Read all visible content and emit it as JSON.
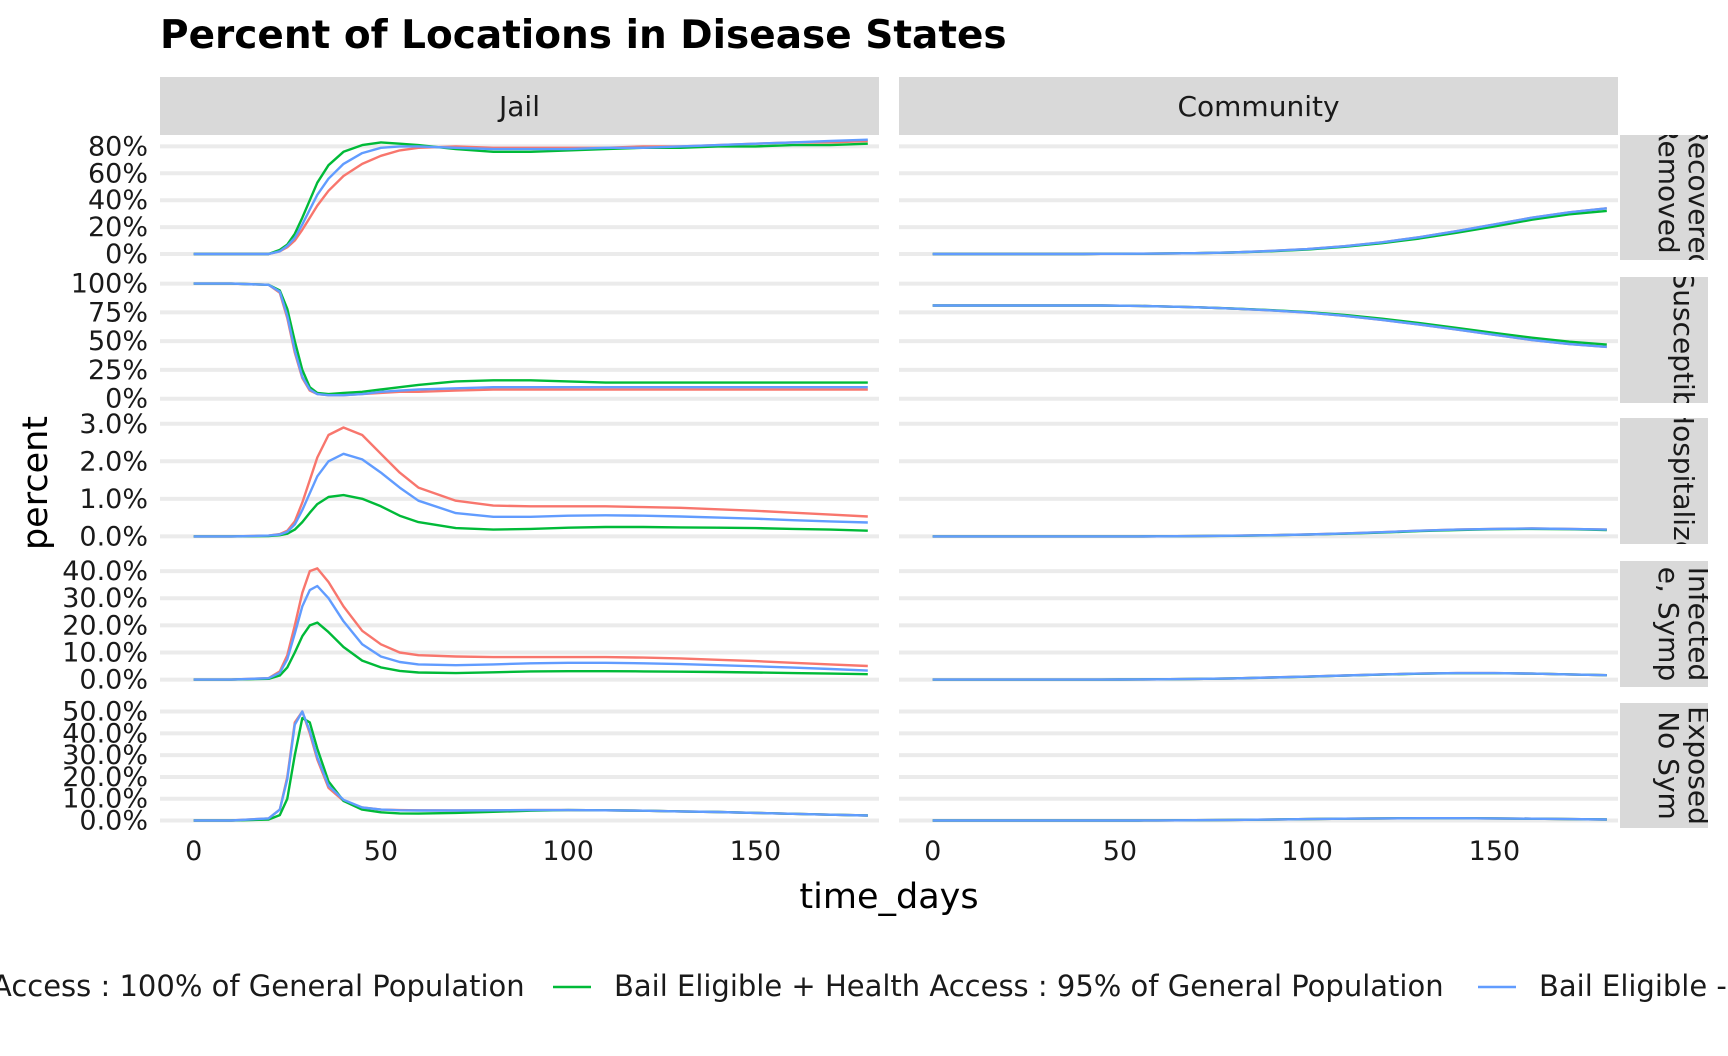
{
  "chart_data": {
    "type": "line",
    "title": "Percent of Locations in Disease States",
    "xlabel": "time_days",
    "ylabel": "percent",
    "xlim": [
      -9,
      183
    ],
    "x_ticks": [
      0,
      50,
      100,
      150
    ],
    "x_tick_labels": [
      "0",
      "50",
      "100",
      "150"
    ],
    "facet_columns": [
      "Jail",
      "Community"
    ],
    "facet_rows": [
      {
        "strip_lines": [
          "Recovered",
          "Removed -"
        ],
        "ylim": [
          -3,
          87
        ],
        "ticks": [
          0,
          20,
          40,
          60,
          80
        ],
        "tick_labels": [
          "0%",
          "20%",
          "40%",
          "60%",
          "80%"
        ]
      },
      {
        "strip_lines": [
          "Susceptib"
        ],
        "ylim": [
          -2,
          104
        ],
        "ticks": [
          0,
          25,
          50,
          75,
          100
        ],
        "tick_labels": [
          "0%",
          "25%",
          "50%",
          "75%",
          "100%"
        ]
      },
      {
        "strip_lines": [
          "Hospitalize"
        ],
        "ylim": [
          -0.15,
          3.1
        ],
        "ticks": [
          0,
          1,
          2,
          3
        ],
        "tick_labels": [
          "0.0%",
          "1.0%",
          "2.0%",
          "3.0%"
        ]
      },
      {
        "strip_lines": [
          "Infected",
          "e, Symp"
        ],
        "ylim": [
          -2,
          43
        ],
        "ticks": [
          0,
          10,
          20,
          30,
          40
        ],
        "tick_labels": [
          "0.0%",
          "10.0%",
          "20.0%",
          "30.0%",
          "40.0%"
        ]
      },
      {
        "strip_lines": [
          "Exposed",
          "No Sym"
        ],
        "ylim": [
          -2.5,
          53
        ],
        "ticks": [
          0,
          10,
          20,
          30,
          40,
          50
        ],
        "tick_labels": [
          "0.0%",
          "10.0%",
          "20.0%",
          "30.0%",
          "40.0%",
          "50.0%"
        ]
      }
    ],
    "series": [
      {
        "color": "#F8766D"
      },
      {
        "color": "#00BA38"
      },
      {
        "color": "#619CFF"
      }
    ],
    "x": [
      0,
      10,
      20,
      23,
      25,
      27,
      29,
      31,
      33,
      36,
      40,
      45,
      50,
      55,
      60,
      70,
      80,
      90,
      100,
      110,
      120,
      130,
      140,
      150,
      160,
      170,
      180
    ],
    "data": [
      [
        [
          [
            0,
            0,
            0,
            2,
            5,
            10,
            18,
            27,
            36,
            47,
            58,
            67,
            73,
            77,
            79,
            80,
            79,
            79,
            79,
            79,
            80,
            80,
            81,
            82,
            83,
            83,
            84
          ],
          [
            0,
            0,
            0,
            3,
            7,
            15,
            27,
            40,
            53,
            66,
            76,
            81,
            83,
            82,
            81,
            78,
            76,
            76,
            77,
            78,
            79,
            79,
            80,
            80,
            81,
            81,
            82
          ],
          [
            0,
            0,
            0,
            2,
            6,
            12,
            22,
            33,
            44,
            56,
            67,
            75,
            79,
            80,
            80,
            79,
            78,
            78,
            78,
            79,
            79,
            80,
            81,
            82,
            83,
            84,
            85
          ]
        ],
        [
          [
            0,
            0,
            0,
            0,
            0,
            0,
            0,
            0,
            0,
            0,
            0,
            0.1,
            0.1,
            0.2,
            0.3,
            0.6,
            1.2,
            2.2,
            3.6,
            5.8,
            8.7,
            12.5,
            17,
            22,
            27,
            31,
            34
          ],
          [
            0,
            0,
            0,
            0,
            0,
            0,
            0,
            0,
            0,
            0,
            0,
            0.1,
            0.1,
            0.2,
            0.3,
            0.6,
            1.1,
            2,
            3.3,
            5.3,
            8,
            11.5,
            15.8,
            20.5,
            25.5,
            29.5,
            32
          ],
          [
            0,
            0,
            0,
            0,
            0,
            0,
            0,
            0,
            0,
            0,
            0,
            0.1,
            0.1,
            0.2,
            0.3,
            0.6,
            1.2,
            2.2,
            3.6,
            5.8,
            8.7,
            12.5,
            17,
            22,
            27,
            31,
            34
          ]
        ]
      ],
      [
        [
          [
            100,
            100,
            99,
            92,
            70,
            40,
            18,
            7,
            4,
            3,
            3,
            4,
            5,
            6,
            6,
            7,
            8,
            8,
            8,
            8,
            8,
            8,
            8,
            8,
            8,
            8,
            8
          ],
          [
            100,
            100,
            99,
            94,
            78,
            50,
            25,
            10,
            5,
            4,
            5,
            6,
            8,
            10,
            12,
            15,
            16,
            16,
            15,
            14,
            14,
            14,
            14,
            14,
            14,
            14,
            14
          ],
          [
            100,
            100,
            99,
            93,
            72,
            42,
            19,
            8,
            4,
            3,
            3,
            4,
            6,
            7,
            8,
            9,
            10,
            10,
            10,
            10,
            10,
            10,
            10,
            10,
            10,
            10,
            10
          ]
        ],
        [
          [
            81,
            81,
            81,
            81,
            81,
            81,
            81,
            81,
            81,
            81,
            81,
            81,
            80.8,
            80.6,
            80.3,
            79.5,
            78.3,
            76.8,
            74.8,
            72,
            68.5,
            64.5,
            60,
            55.5,
            51,
            47.5,
            45
          ],
          [
            81,
            81,
            81,
            81,
            81,
            81,
            81,
            81,
            81,
            81,
            81,
            81,
            80.8,
            80.6,
            80.3,
            79.5,
            78.4,
            77,
            75.2,
            72.7,
            69.5,
            65.7,
            61.5,
            57.2,
            53,
            49.5,
            47
          ],
          [
            81,
            81,
            81,
            81,
            81,
            81,
            81,
            81,
            81,
            81,
            81,
            81,
            80.8,
            80.6,
            80.3,
            79.5,
            78.3,
            76.8,
            74.8,
            72,
            68.5,
            64.5,
            60,
            55.5,
            51,
            47.5,
            45
          ]
        ]
      ],
      [
        [
          [
            0,
            0,
            0.02,
            0.06,
            0.15,
            0.4,
            0.9,
            1.5,
            2.1,
            2.7,
            2.9,
            2.7,
            2.2,
            1.7,
            1.3,
            0.95,
            0.82,
            0.8,
            0.8,
            0.8,
            0.78,
            0.76,
            0.72,
            0.68,
            0.63,
            0.58,
            0.53
          ],
          [
            0,
            0,
            0.01,
            0.03,
            0.07,
            0.18,
            0.38,
            0.63,
            0.86,
            1.05,
            1.1,
            1,
            0.8,
            0.55,
            0.38,
            0.22,
            0.18,
            0.2,
            0.23,
            0.25,
            0.25,
            0.24,
            0.23,
            0.22,
            0.2,
            0.18,
            0.15
          ],
          [
            0,
            0,
            0.02,
            0.05,
            0.12,
            0.32,
            0.7,
            1.15,
            1.6,
            2,
            2.2,
            2.05,
            1.7,
            1.3,
            0.95,
            0.62,
            0.52,
            0.52,
            0.55,
            0.56,
            0.55,
            0.53,
            0.5,
            0.47,
            0.43,
            0.4,
            0.37
          ]
        ],
        [
          [
            0,
            0,
            0,
            0,
            0,
            0,
            0,
            0,
            0,
            0,
            0,
            0,
            0,
            0,
            0.002,
            0.008,
            0.017,
            0.03,
            0.05,
            0.08,
            0.11,
            0.15,
            0.18,
            0.2,
            0.21,
            0.2,
            0.18
          ],
          [
            0,
            0,
            0,
            0,
            0,
            0,
            0,
            0,
            0,
            0,
            0,
            0,
            0,
            0,
            0.002,
            0.008,
            0.016,
            0.028,
            0.046,
            0.07,
            0.1,
            0.14,
            0.17,
            0.19,
            0.2,
            0.19,
            0.17
          ],
          [
            0,
            0,
            0,
            0,
            0,
            0,
            0,
            0,
            0,
            0,
            0,
            0,
            0,
            0,
            0.002,
            0.008,
            0.017,
            0.03,
            0.05,
            0.08,
            0.11,
            0.15,
            0.18,
            0.2,
            0.21,
            0.2,
            0.18
          ]
        ]
      ],
      [
        [
          [
            0,
            0,
            0.5,
            3,
            9,
            20,
            32,
            40,
            41,
            36,
            27,
            18,
            13,
            10,
            9,
            8.5,
            8.3,
            8.3,
            8.3,
            8.3,
            8.1,
            7.8,
            7.3,
            6.8,
            6.2,
            5.6,
            5
          ],
          [
            0,
            0,
            0.3,
            1.5,
            4.5,
            10,
            16,
            20,
            21,
            17.5,
            12,
            7,
            4.5,
            3.2,
            2.6,
            2.4,
            2.7,
            3,
            3.1,
            3.1,
            3,
            2.9,
            2.8,
            2.6,
            2.4,
            2.2,
            2
          ],
          [
            0,
            0,
            0.5,
            2.5,
            7.5,
            17,
            27,
            33,
            34.5,
            30,
            21.5,
            13,
            8.5,
            6.5,
            5.6,
            5.3,
            5.6,
            6,
            6.2,
            6.2,
            6,
            5.7,
            5.3,
            4.9,
            4.4,
            3.9,
            3.3
          ]
        ],
        [
          [
            0,
            0,
            0,
            0,
            0,
            0,
            0,
            0,
            0,
            0,
            0,
            0,
            0.02,
            0.05,
            0.1,
            0.25,
            0.45,
            0.75,
            1.1,
            1.5,
            1.9,
            2.2,
            2.4,
            2.4,
            2.2,
            1.9,
            1.6
          ],
          [
            0,
            0,
            0,
            0,
            0,
            0,
            0,
            0,
            0,
            0,
            0,
            0,
            0.02,
            0.05,
            0.1,
            0.25,
            0.45,
            0.72,
            1.05,
            1.45,
            1.85,
            2.15,
            2.35,
            2.35,
            2.2,
            1.9,
            1.6
          ],
          [
            0,
            0,
            0,
            0,
            0,
            0,
            0,
            0,
            0,
            0,
            0,
            0,
            0.02,
            0.05,
            0.1,
            0.25,
            0.45,
            0.75,
            1.1,
            1.5,
            1.9,
            2.2,
            2.4,
            2.4,
            2.2,
            1.9,
            1.6
          ]
        ]
      ],
      [
        [
          [
            0,
            0,
            1,
            5,
            20,
            45,
            50,
            40,
            28,
            15,
            9,
            6,
            5,
            4.8,
            4.7,
            4.6,
            4.7,
            4.8,
            4.8,
            4.7,
            4.5,
            4.2,
            3.9,
            3.5,
            3.1,
            2.7,
            2.3
          ],
          [
            0,
            0,
            0.5,
            2.5,
            10,
            30,
            47,
            45,
            33,
            18,
            9,
            5,
            3.8,
            3.3,
            3.2,
            3.5,
            4,
            4.5,
            4.8,
            4.7,
            4.5,
            4.2,
            3.9,
            3.5,
            3.1,
            2.7,
            2.3
          ],
          [
            0,
            0,
            1,
            5,
            19,
            44,
            50,
            41,
            29,
            16,
            9.5,
            6,
            5,
            4.7,
            4.6,
            4.6,
            4.7,
            4.8,
            4.8,
            4.7,
            4.5,
            4.2,
            3.9,
            3.5,
            3.1,
            2.7,
            2.3
          ]
        ],
        [
          [
            0,
            0,
            0,
            0,
            0,
            0,
            0,
            0,
            0,
            0,
            0,
            0,
            0.02,
            0.04,
            0.07,
            0.15,
            0.28,
            0.45,
            0.65,
            0.85,
            1,
            1.1,
            1.1,
            1,
            0.85,
            0.65,
            0.5
          ],
          [
            0,
            0,
            0,
            0,
            0,
            0,
            0,
            0,
            0,
            0,
            0,
            0,
            0.02,
            0.04,
            0.07,
            0.15,
            0.28,
            0.45,
            0.65,
            0.85,
            1,
            1.1,
            1.1,
            1,
            0.85,
            0.65,
            0.5
          ],
          [
            0,
            0,
            0,
            0,
            0,
            0,
            0,
            0,
            0,
            0,
            0,
            0,
            0.02,
            0.04,
            0.07,
            0.15,
            0.28,
            0.45,
            0.65,
            0.85,
            1,
            1.1,
            1.1,
            1,
            0.85,
            0.65,
            0.5
          ]
        ]
      ]
    ],
    "legend": {
      "position": "bottom",
      "entries": [
        {
          "label": "Access : 100% of General Population",
          "color": "#F8766D"
        },
        {
          "label": "Bail Eligible + Health Access : 95% of General Population",
          "color": "#00BA38"
        },
        {
          "label": "Bail Eligible -",
          "color": "#619CFF"
        }
      ]
    },
    "grid": true
  }
}
